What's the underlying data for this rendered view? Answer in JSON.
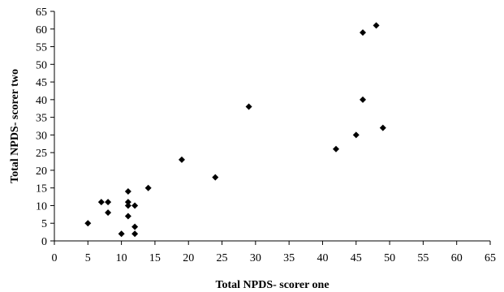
{
  "chart_data": {
    "type": "scatter",
    "title": "",
    "xlabel": "Total NPDS- scorer one",
    "ylabel": "Total NPDS- scorer two",
    "xlim": [
      0,
      65
    ],
    "ylim": [
      0,
      65
    ],
    "xticks": [
      0,
      5,
      10,
      15,
      20,
      25,
      30,
      35,
      40,
      45,
      50,
      55,
      60,
      65
    ],
    "yticks": [
      0,
      5,
      10,
      15,
      20,
      25,
      30,
      35,
      40,
      45,
      50,
      55,
      60,
      65
    ],
    "grid": false,
    "marker": "diamond",
    "points": [
      {
        "x": 5,
        "y": 5
      },
      {
        "x": 7,
        "y": 11
      },
      {
        "x": 8,
        "y": 11
      },
      {
        "x": 8,
        "y": 8
      },
      {
        "x": 10,
        "y": 2
      },
      {
        "x": 11,
        "y": 14
      },
      {
        "x": 11,
        "y": 11
      },
      {
        "x": 11,
        "y": 10
      },
      {
        "x": 11,
        "y": 7
      },
      {
        "x": 12,
        "y": 10
      },
      {
        "x": 12,
        "y": 4
      },
      {
        "x": 12,
        "y": 2
      },
      {
        "x": 14,
        "y": 15
      },
      {
        "x": 19,
        "y": 23
      },
      {
        "x": 24,
        "y": 18
      },
      {
        "x": 29,
        "y": 38
      },
      {
        "x": 42,
        "y": 26
      },
      {
        "x": 45,
        "y": 30
      },
      {
        "x": 46,
        "y": 59
      },
      {
        "x": 46,
        "y": 40
      },
      {
        "x": 48,
        "y": 61
      },
      {
        "x": 49,
        "y": 32
      }
    ]
  }
}
